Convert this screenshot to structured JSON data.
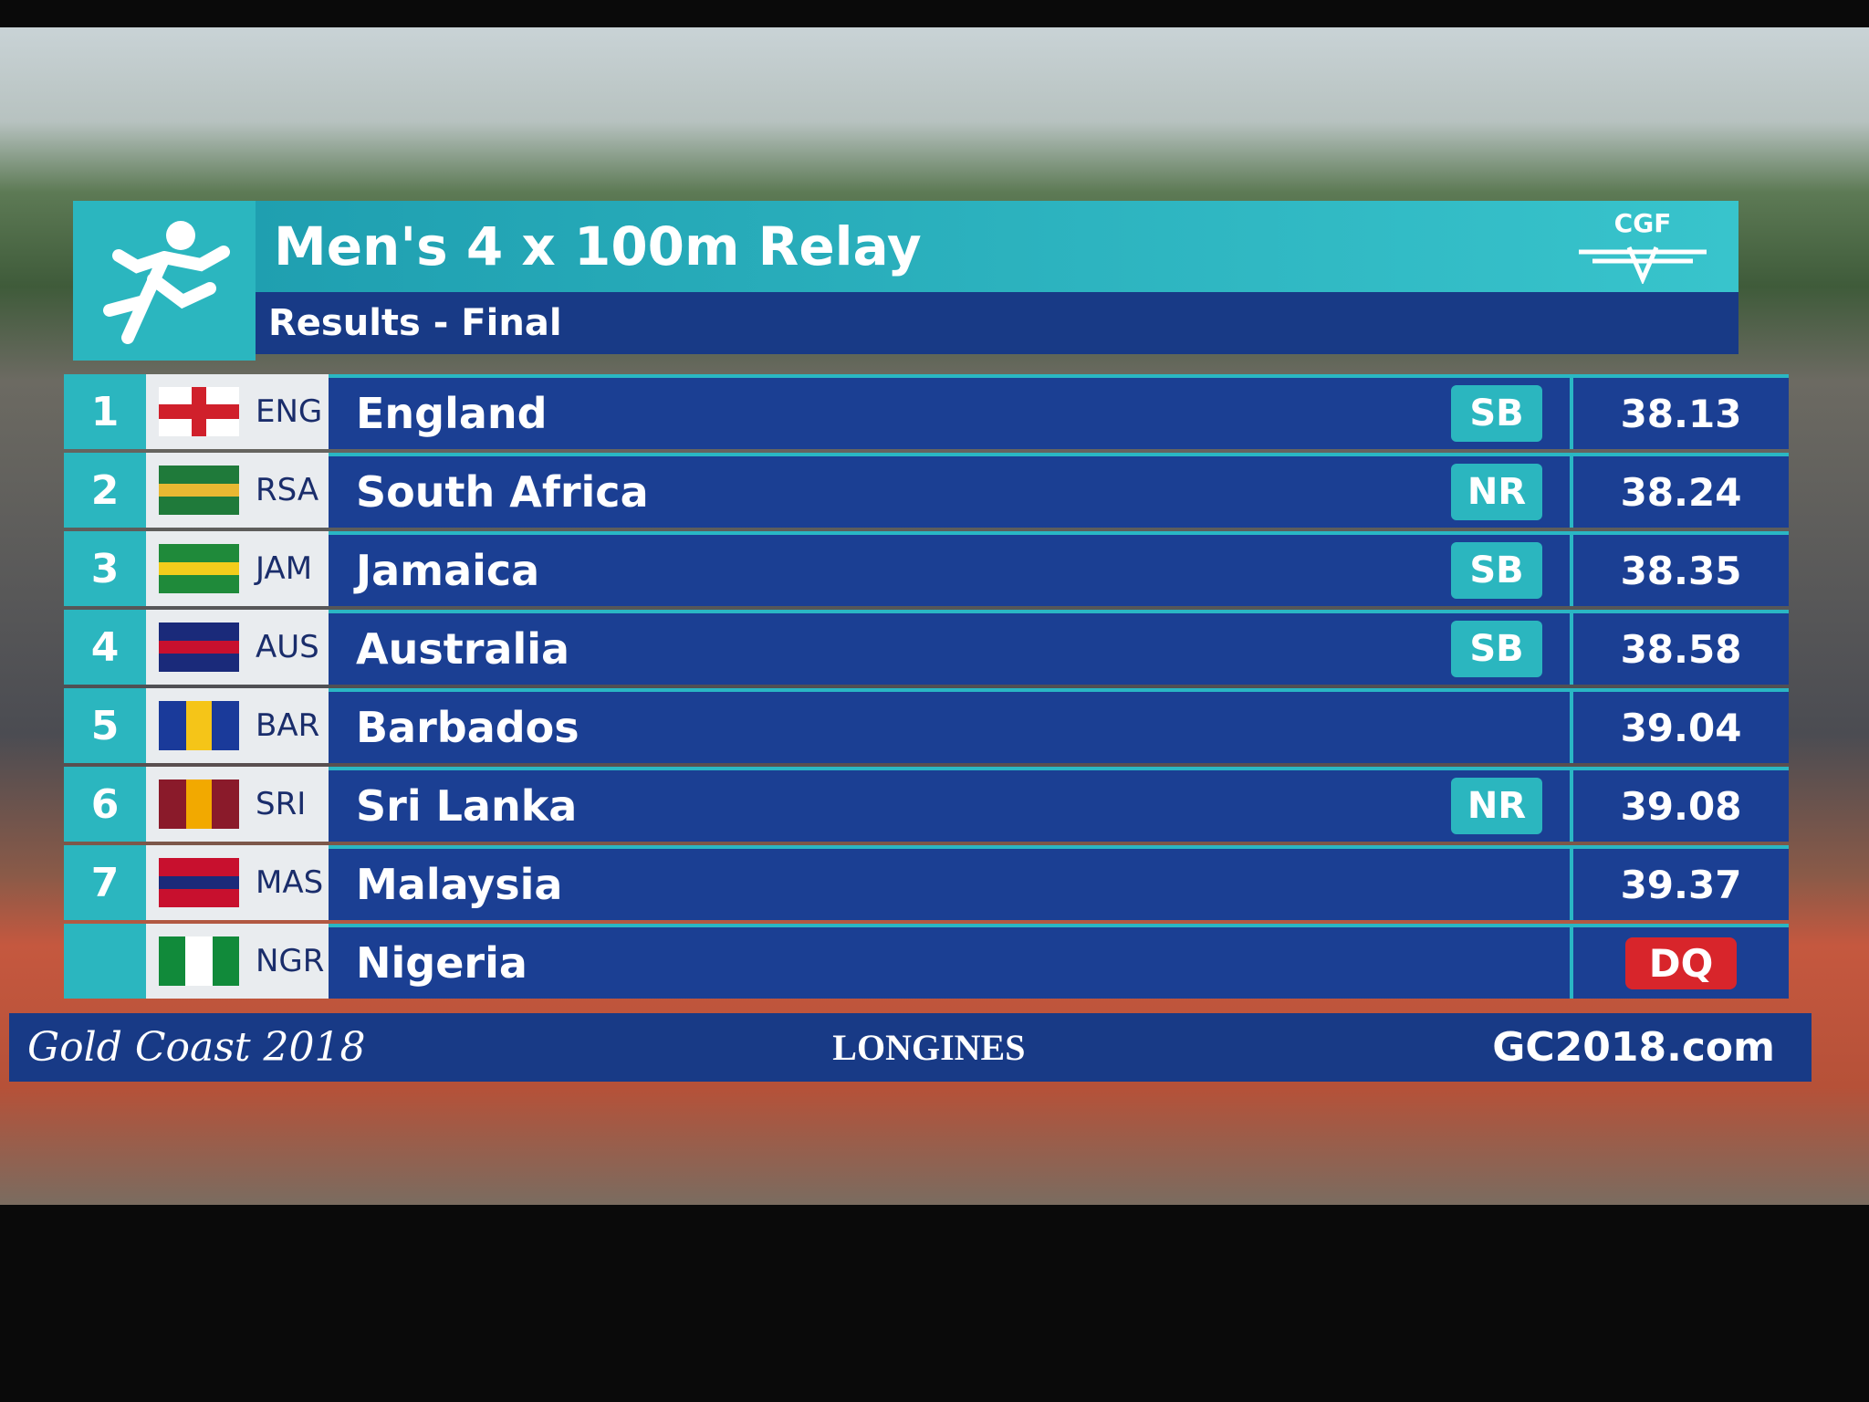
{
  "header": {
    "title": "Men's 4 x 100m Relay",
    "subtitle": "Results - Final",
    "logo": "CGF"
  },
  "table": {
    "rows": [
      {
        "rank": 1,
        "code": "ENG",
        "country": "England",
        "record": "SB",
        "time": "38.13"
      },
      {
        "rank": 2,
        "code": "RSA",
        "country": "South Africa",
        "record": "NR",
        "time": "38.24"
      },
      {
        "rank": 3,
        "code": "JAM",
        "country": "Jamaica",
        "record": "SB",
        "time": "38.35"
      },
      {
        "rank": 4,
        "code": "AUS",
        "country": "Australia",
        "record": "SB",
        "time": "38.58"
      },
      {
        "rank": 5,
        "code": "BAR",
        "country": "Barbados",
        "time": "39.04"
      },
      {
        "rank": 6,
        "code": "SRI",
        "country": "Sri Lanka",
        "record": "NR",
        "time": "39.08"
      },
      {
        "rank": 7,
        "code": "MAS",
        "country": "Malaysia",
        "time": "39.37"
      },
      {
        "code": "NGR",
        "country": "Nigeria",
        "time": "DQ"
      }
    ]
  },
  "footer": {
    "left": "Gold Coast 2018",
    "center": "LONGINES",
    "right": "GC2018.com"
  }
}
